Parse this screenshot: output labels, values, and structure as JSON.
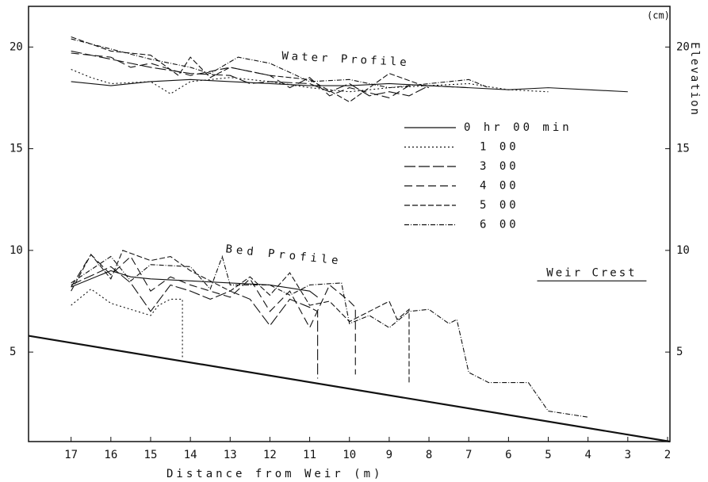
{
  "chart_data": {
    "type": "line",
    "xlabel": "Distance from Weir (m)",
    "ylabel_unit": "(cm)",
    "y2label": "Elevation",
    "annotations": {
      "water": "Water Profile",
      "bed": "Bed Profile"
    },
    "weir_crest": {
      "label": "Weir Crest",
      "level": 8.5,
      "x": [
        5.28,
        2.53
      ]
    },
    "xlim": [
      18.07,
      1.94
    ],
    "xticks": [
      17,
      16,
      15,
      14,
      13,
      12,
      11,
      10,
      9,
      8,
      7,
      6,
      5,
      4,
      3,
      2
    ],
    "ylim": [
      0.6,
      22
    ],
    "yticks": [
      5,
      10,
      15,
      20
    ],
    "y2lim": [
      0.6,
      22
    ],
    "y2ticks": [
      5,
      10,
      15,
      20
    ],
    "color": "#111111",
    "channel_bed": {
      "x": [
        18.07,
        1.94
      ],
      "values": [
        5.8,
        0.6
      ]
    },
    "series": [
      {
        "name": "0 hr 00 min",
        "dash": "none",
        "water": {
          "x": [
            17,
            16,
            15,
            14,
            13,
            12,
            11,
            10,
            9,
            8,
            7,
            6,
            5,
            4,
            3
          ],
          "values": [
            18.3,
            18.1,
            18.3,
            18.4,
            18.3,
            18.2,
            18.1,
            18.1,
            18.2,
            18.1,
            18.0,
            17.9,
            18.0,
            17.9,
            17.8
          ]
        },
        "bed": {
          "x": [
            17,
            16,
            15.5,
            15,
            14,
            13,
            12,
            11,
            10.8
          ],
          "values": [
            8.2,
            9.0,
            8.7,
            8.6,
            8.5,
            8.4,
            8.3,
            8.0,
            7.7
          ]
        }
      },
      {
        "name": "1 00",
        "dash": "2 3",
        "water": {
          "x": [
            17,
            16.5,
            16,
            15,
            14.5,
            14,
            13,
            12,
            11,
            10,
            9,
            8,
            7,
            6,
            5
          ],
          "values": [
            18.9,
            18.5,
            18.2,
            18.3,
            17.7,
            18.3,
            18.5,
            18.3,
            18.0,
            17.8,
            18.0,
            18.1,
            18.2,
            17.9,
            17.8
          ]
        },
        "bed": {
          "x": [
            17,
            16.5,
            16,
            15,
            14.8,
            14.5,
            14.2,
            14.2
          ],
          "values": [
            7.3,
            8.1,
            7.4,
            6.8,
            7.3,
            7.6,
            7.6,
            4.7
          ]
        }
      },
      {
        "name": "3 00",
        "dash": "14 4",
        "water": {
          "x": [
            17,
            16,
            15,
            14,
            13,
            12.5,
            12,
            11,
            10.5,
            10,
            9.5,
            9,
            8.5,
            8,
            7
          ],
          "values": [
            19.8,
            19.4,
            19.0,
            18.7,
            18.6,
            18.2,
            18.3,
            18.2,
            17.8,
            18.2,
            17.6,
            17.8,
            17.6,
            18.1,
            18.0
          ]
        },
        "bed": {
          "x": [
            17,
            16,
            15.5,
            15,
            14.5,
            14,
            13.5,
            13,
            12.5,
            12,
            11.5,
            11,
            10.8,
            10.8
          ],
          "values": [
            8.3,
            9.2,
            8.4,
            7.0,
            8.3,
            8.0,
            7.6,
            8.0,
            7.6,
            6.3,
            7.6,
            7.2,
            7.0,
            3.7
          ]
        }
      },
      {
        "name": "4 00",
        "dash": "10 5",
        "water": {
          "x": [
            17,
            16,
            15.5,
            15,
            14,
            13,
            12,
            11.5,
            11,
            10.5,
            10,
            9,
            8.5
          ],
          "values": [
            19.7,
            19.5,
            19.0,
            19.2,
            18.6,
            19.0,
            18.6,
            18.0,
            18.5,
            17.6,
            18.0,
            17.5,
            18.1
          ]
        },
        "bed": {
          "x": [
            17,
            16.5,
            16,
            15.5,
            15,
            14.5,
            14,
            13,
            12.5,
            12,
            11.5,
            11,
            10.5,
            10,
            9.85,
            9.85
          ],
          "values": [
            8.2,
            9.8,
            8.8,
            9.7,
            8.0,
            8.7,
            8.3,
            7.7,
            8.6,
            7.0,
            8.0,
            6.2,
            8.3,
            7.5,
            7.2,
            3.9
          ]
        }
      },
      {
        "name": "5 00",
        "dash": "7 3",
        "water": {
          "x": [
            17,
            16,
            15,
            14.3,
            14,
            13.5,
            13,
            12,
            11,
            10,
            9.5,
            9,
            8
          ],
          "values": [
            20.5,
            19.8,
            19.6,
            18.6,
            19.5,
            18.5,
            19.0,
            18.6,
            18.4,
            17.3,
            18.0,
            18.7,
            18.0
          ]
        },
        "bed": {
          "x": [
            17,
            16.5,
            16,
            15.7,
            15,
            14.5,
            14,
            13,
            12.5,
            12,
            11.5,
            11,
            10.5,
            10,
            9.5,
            9,
            8.8,
            8.5,
            8.5
          ],
          "values": [
            8.0,
            9.8,
            8.6,
            10.0,
            9.5,
            9.7,
            9.0,
            8.0,
            8.7,
            7.8,
            8.9,
            7.3,
            7.5,
            6.5,
            7.0,
            7.5,
            6.6,
            7.1,
            3.5
          ]
        }
      },
      {
        "name": "6 00",
        "dash": "6 2 1 2",
        "water": {
          "x": [
            17,
            16,
            15,
            14,
            13.5,
            12.8,
            12,
            11,
            10,
            9,
            8,
            7,
            6.5
          ],
          "values": [
            20.4,
            19.9,
            19.4,
            19.0,
            18.7,
            19.5,
            19.2,
            18.3,
            18.4,
            18.0,
            18.2,
            18.4,
            18.0
          ]
        },
        "bed": {
          "x": [
            17,
            16,
            15.5,
            15,
            14,
            13.5,
            13.2,
            13,
            12,
            11.5,
            11,
            10.2,
            10,
            9.5,
            9,
            8.5,
            8,
            7.5,
            7.3,
            7,
            6.5,
            6,
            5.5,
            5,
            4
          ],
          "values": [
            8.4,
            9.7,
            8.5,
            9.3,
            9.2,
            8.1,
            9.7,
            8.3,
            8.3,
            7.8,
            8.3,
            8.4,
            6.4,
            6.8,
            6.2,
            7.0,
            7.1,
            6.4,
            6.6,
            4.0,
            3.5,
            3.5,
            3.5,
            2.1,
            1.8
          ]
        }
      }
    ]
  }
}
